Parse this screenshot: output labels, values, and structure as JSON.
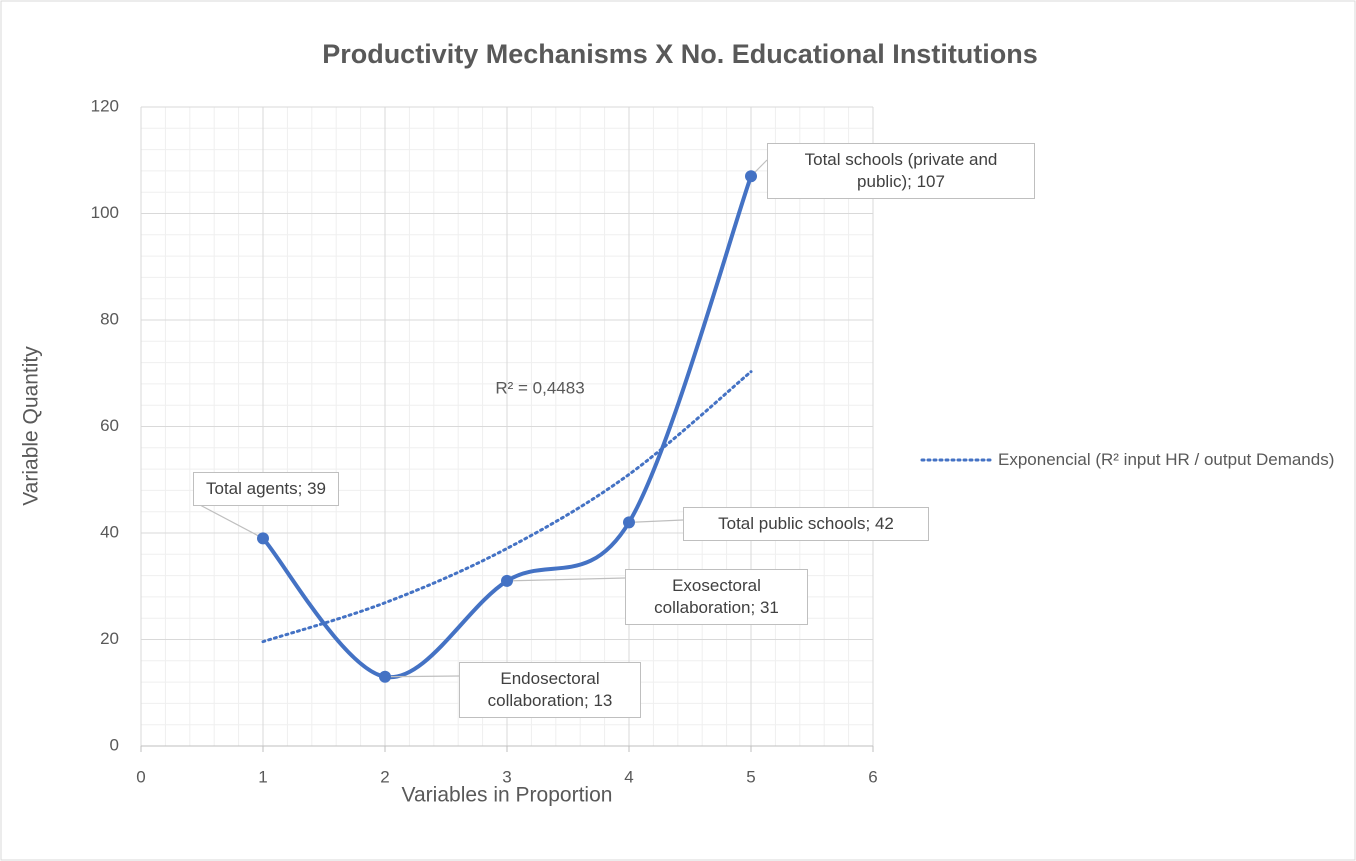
{
  "chart_data": {
    "type": "scatter",
    "title": "Productivity Mechanisms X No. Educational Institutions",
    "x_label": "Variables in Proportion",
    "y_label": "Variable Quantity",
    "series": [
      {
        "name": "Productivity Mechanisms",
        "color": "#4472c4",
        "x": [
          1,
          2,
          3,
          4,
          5
        ],
        "values": [
          39,
          13,
          31,
          42,
          107
        ],
        "value_labels": [
          "Total agents; 39",
          "Endosectoral collaboration; 13",
          "Exosectoral collaboration; 31",
          "Total public schools; 42",
          "Total schools (private and public); 107"
        ]
      }
    ],
    "trendline": {
      "name": "Exponencial (R² input HR / output Demands)",
      "color": "#4472c4",
      "x": [
        1,
        2,
        3,
        4,
        5
      ],
      "values": [
        19.6,
        26.9,
        37.1,
        51.0,
        70.3
      ],
      "annotation": "R² = 0,4483"
    },
    "xlim": [
      0,
      6
    ],
    "xticks": [
      0,
      1,
      2,
      3,
      4,
      5,
      6
    ],
    "ylim": [
      0,
      120
    ],
    "yticks": [
      0,
      20,
      40,
      60,
      80,
      100,
      120
    ],
    "grid": true,
    "minor_grid": true,
    "smooth": true,
    "legend": "right"
  }
}
